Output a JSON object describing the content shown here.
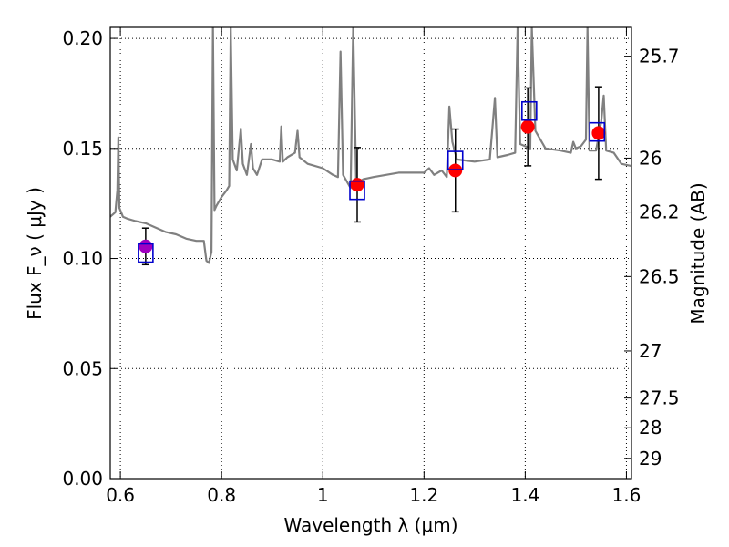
{
  "chart_data": {
    "type": "scatter",
    "xlabel": "Wavelength  λ (μm)",
    "ylabel": "Flux  F_ν  ( μJy )",
    "ylabel_right": "Magnitude (AB)",
    "xlim": [
      0.58,
      1.61
    ],
    "ylim": [
      0.0,
      0.205
    ],
    "grid": true,
    "x_ticks": [
      0.6,
      0.8,
      1.0,
      1.2,
      1.4,
      1.6
    ],
    "x_tick_labels": [
      "0.6",
      "0.8",
      "1",
      "1.2",
      "1.4",
      "1.6"
    ],
    "y_ticks": [
      0.0,
      0.05,
      0.1,
      0.15,
      0.2
    ],
    "y_tick_labels": [
      "0.00",
      "0.05",
      "0.10",
      "0.15",
      "0.20"
    ],
    "right_ticks": [
      {
        "label": "25.7",
        "flux": 0.1919
      },
      {
        "label": "26",
        "flux": 0.1456
      },
      {
        "label": "26.2",
        "flux": 0.1211
      },
      {
        "label": "26.5",
        "flux": 0.0918
      },
      {
        "label": "27",
        "flux": 0.058
      },
      {
        "label": "27.5",
        "flux": 0.0366
      },
      {
        "label": "28",
        "flux": 0.0231
      },
      {
        "label": "29",
        "flux": 0.0092
      }
    ],
    "colors": {
      "spectrum": "#808080",
      "observed": "#ff0000",
      "model": "#0000cc",
      "errorbar": "#000000",
      "overlap": "#a000c0"
    },
    "spectrum": {
      "name": "",
      "points": [
        [
          0.58,
          0.119
        ],
        [
          0.59,
          0.121
        ],
        [
          0.594,
          0.131
        ],
        [
          0.596,
          0.155
        ],
        [
          0.598,
          0.123
        ],
        [
          0.605,
          0.119
        ],
        [
          0.615,
          0.118
        ],
        [
          0.63,
          0.117
        ],
        [
          0.65,
          0.116
        ],
        [
          0.67,
          0.114
        ],
        [
          0.69,
          0.112
        ],
        [
          0.71,
          0.111
        ],
        [
          0.73,
          0.109
        ],
        [
          0.75,
          0.108
        ],
        [
          0.765,
          0.108
        ],
        [
          0.77,
          0.099
        ],
        [
          0.775,
          0.098
        ],
        [
          0.78,
          0.103
        ],
        [
          0.783,
          0.205
        ],
        [
          0.786,
          0.122
        ],
        [
          0.79,
          0.124
        ],
        [
          0.8,
          0.128
        ],
        [
          0.81,
          0.131
        ],
        [
          0.815,
          0.133
        ],
        [
          0.818,
          0.205
        ],
        [
          0.822,
          0.145
        ],
        [
          0.83,
          0.14
        ],
        [
          0.838,
          0.159
        ],
        [
          0.842,
          0.143
        ],
        [
          0.85,
          0.138
        ],
        [
          0.858,
          0.152
        ],
        [
          0.862,
          0.141
        ],
        [
          0.87,
          0.138
        ],
        [
          0.88,
          0.145
        ],
        [
          0.9,
          0.145
        ],
        [
          0.915,
          0.144
        ],
        [
          0.918,
          0.16
        ],
        [
          0.921,
          0.144
        ],
        [
          0.93,
          0.146
        ],
        [
          0.945,
          0.148
        ],
        [
          0.95,
          0.158
        ],
        [
          0.954,
          0.146
        ],
        [
          0.97,
          0.143
        ],
        [
          1.0,
          0.141
        ],
        [
          1.02,
          0.138
        ],
        [
          1.03,
          0.137
        ],
        [
          1.035,
          0.194
        ],
        [
          1.04,
          0.138
        ],
        [
          1.055,
          0.132
        ],
        [
          1.06,
          0.205
        ],
        [
          1.066,
          0.134
        ],
        [
          1.08,
          0.136
        ],
        [
          1.1,
          0.137
        ],
        [
          1.15,
          0.139
        ],
        [
          1.2,
          0.139
        ],
        [
          1.21,
          0.141
        ],
        [
          1.22,
          0.138
        ],
        [
          1.235,
          0.14
        ],
        [
          1.245,
          0.137
        ],
        [
          1.25,
          0.169
        ],
        [
          1.256,
          0.153
        ],
        [
          1.265,
          0.145
        ],
        [
          1.3,
          0.144
        ],
        [
          1.33,
          0.145
        ],
        [
          1.34,
          0.173
        ],
        [
          1.345,
          0.146
        ],
        [
          1.365,
          0.147
        ],
        [
          1.38,
          0.148
        ],
        [
          1.385,
          0.205
        ],
        [
          1.39,
          0.152
        ],
        [
          1.41,
          0.15
        ],
        [
          1.413,
          0.205
        ],
        [
          1.42,
          0.158
        ],
        [
          1.44,
          0.15
        ],
        [
          1.47,
          0.149
        ],
        [
          1.49,
          0.148
        ],
        [
          1.495,
          0.153
        ],
        [
          1.5,
          0.15
        ],
        [
          1.51,
          0.151
        ],
        [
          1.52,
          0.154
        ],
        [
          1.523,
          0.205
        ],
        [
          1.527,
          0.149
        ],
        [
          1.54,
          0.149
        ],
        [
          1.55,
          0.162
        ],
        [
          1.555,
          0.174
        ],
        [
          1.56,
          0.149
        ],
        [
          1.575,
          0.148
        ],
        [
          1.59,
          0.143
        ],
        [
          1.61,
          0.142
        ]
      ]
    },
    "observed": [
      {
        "x": 0.65,
        "y": 0.1055,
        "yerr": 0.0083
      },
      {
        "x": 1.068,
        "y": 0.1335,
        "yerr": 0.0169
      },
      {
        "x": 1.262,
        "y": 0.14,
        "yerr": 0.0188
      },
      {
        "x": 1.405,
        "y": 0.1598,
        "yerr": 0.0177
      },
      {
        "x": 1.545,
        "y": 0.157,
        "yerr": 0.021
      }
    ],
    "model": [
      {
        "x": 0.65,
        "y": 0.1025
      },
      {
        "x": 1.068,
        "y": 0.131
      },
      {
        "x": 1.262,
        "y": 0.1445
      },
      {
        "x": 1.408,
        "y": 0.167
      },
      {
        "x": 1.542,
        "y": 0.1575
      }
    ]
  }
}
